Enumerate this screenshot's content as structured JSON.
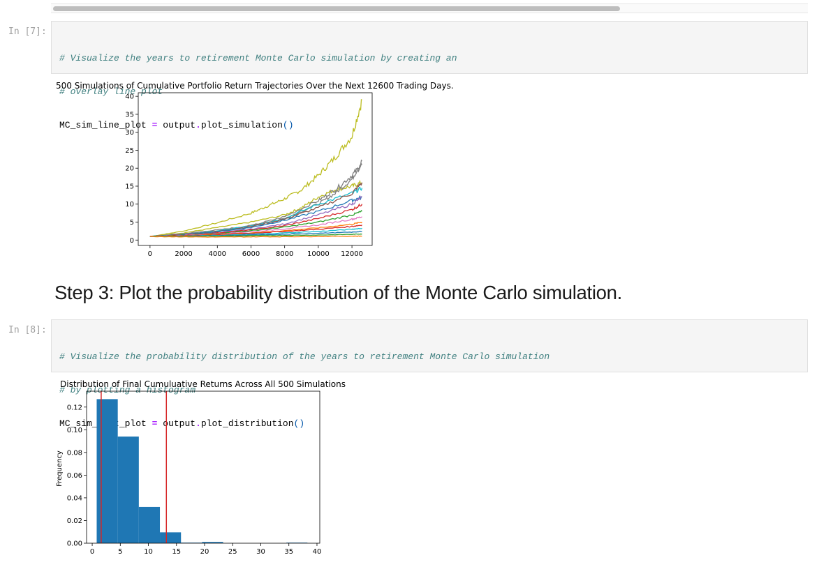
{
  "cells": [
    {
      "prompt": "In [7]:",
      "comment_lines": [
        "# Visualize the years to retirement Monte Carlo simulation by creating an",
        "# overlay line plot"
      ],
      "code": {
        "var": "MC_sim_line_plot",
        "op": "=",
        "obj": "output",
        "dot": ".",
        "method": "plot_simulation",
        "parens": "()"
      }
    },
    {
      "prompt": "In [8]:",
      "comment_lines": [
        "# Visualize the probability distribution of the years to retirement Monte Carlo simulation",
        "# by plotting a histogram"
      ],
      "code": {
        "var": "MC_sim_dist_plot",
        "op": "=",
        "obj": "output",
        "dot": ".",
        "method": "plot_distribution",
        "parens": "()"
      }
    }
  ],
  "markdown": {
    "heading": "Step 3: Plot the probability distribution of the Monte Carlo simulation."
  },
  "chart_data": [
    {
      "type": "line",
      "title": "500 Simulations of Cumulative Portfolio Return Trajectories Over the Next 12600 Trading Days.",
      "xlabel": "",
      "ylabel": "",
      "xlim": [
        -700,
        13200
      ],
      "ylim": [
        -1.5,
        41
      ],
      "x_ticks": [
        0,
        2000,
        4000,
        6000,
        8000,
        10000,
        12000
      ],
      "y_ticks": [
        0,
        5,
        10,
        15,
        20,
        25,
        30,
        35,
        40
      ],
      "num_simulations": 500,
      "x_end": 12600,
      "grid": false,
      "colors": [
        "#1f77b4",
        "#ff7f0e",
        "#2ca02c",
        "#d62728",
        "#9467bd",
        "#8c564b",
        "#e377c2",
        "#7f7f7f",
        "#bcbd22",
        "#17becf"
      ],
      "series": [
        {
          "color": "#bcbd22",
          "x": [
            0,
            2000,
            4000,
            6000,
            7000,
            8000,
            9000,
            10000,
            11000,
            12000,
            12600
          ],
          "values": [
            1,
            2.5,
            4.8,
            7.5,
            9.5,
            11.5,
            14,
            18,
            23,
            29,
            39
          ]
        },
        {
          "color": "#bcbd22",
          "x": [
            0,
            2000,
            4000,
            6000,
            8000,
            9000,
            10000,
            11000,
            12000,
            12600
          ],
          "values": [
            1,
            2,
            3.5,
            5,
            7,
            9,
            12,
            14,
            15,
            16
          ]
        },
        {
          "color": "#7f7f7f",
          "x": [
            0,
            2000,
            4000,
            6000,
            8000,
            10000,
            11000,
            12000,
            12600
          ],
          "values": [
            1,
            1.8,
            2.8,
            4,
            6,
            10,
            13,
            17,
            22
          ]
        },
        {
          "color": "#7f7f7f",
          "x": [
            0,
            2000,
            4000,
            6000,
            8000,
            10000,
            11000,
            12000,
            12600
          ],
          "values": [
            1,
            1.6,
            2.5,
            4,
            6.5,
            11,
            14,
            18,
            21
          ]
        },
        {
          "color": "#17becf",
          "x": [
            0,
            2000,
            4000,
            6000,
            8000,
            10000,
            12000,
            12600
          ],
          "values": [
            1,
            1.5,
            2.5,
            4,
            6,
            10,
            13,
            14.5
          ]
        },
        {
          "color": "#8c564b",
          "x": [
            0,
            2000,
            4000,
            6000,
            8000,
            10000,
            12000,
            12600
          ],
          "values": [
            1,
            1.5,
            2.4,
            3.8,
            5.8,
            9,
            13,
            16
          ]
        },
        {
          "color": "#1f77b4",
          "x": [
            0,
            2000,
            4000,
            6000,
            8000,
            10000,
            12000,
            12600
          ],
          "values": [
            1,
            1.5,
            2.3,
            3.5,
            5.5,
            8,
            11,
            12
          ]
        },
        {
          "color": "#9467bd",
          "x": [
            0,
            2000,
            4000,
            6000,
            8000,
            10000,
            12000,
            12600
          ],
          "values": [
            1,
            1.4,
            2,
            3,
            4.5,
            7,
            10,
            12
          ]
        },
        {
          "color": "#d62728",
          "x": [
            0,
            2000,
            4000,
            6000,
            8000,
            10000,
            12000,
            12600
          ],
          "values": [
            1,
            1.4,
            2,
            2.8,
            4,
            6,
            8.5,
            10
          ]
        },
        {
          "color": "#2ca02c",
          "x": [
            0,
            2000,
            4000,
            6000,
            8000,
            10000,
            12000,
            12600
          ],
          "values": [
            1,
            1.3,
            1.8,
            2.6,
            3.6,
            5,
            7,
            8
          ]
        },
        {
          "color": "#e377c2",
          "x": [
            0,
            2000,
            4000,
            6000,
            8000,
            10000,
            12000,
            12600
          ],
          "values": [
            1,
            1.3,
            1.7,
            2.3,
            3.1,
            4.2,
            5.8,
            6.5
          ]
        },
        {
          "color": "#ff7f0e",
          "x": [
            0,
            2000,
            4000,
            6000,
            8000,
            10000,
            12000,
            12600
          ],
          "values": [
            1,
            1.2,
            1.6,
            2,
            2.6,
            3.4,
            4.4,
            5
          ]
        },
        {
          "color": "#d62728",
          "x": [
            0,
            2000,
            4000,
            6000,
            8000,
            10000,
            12000,
            12600
          ],
          "values": [
            1,
            1.2,
            1.5,
            1.9,
            2.4,
            3,
            3.8,
            4.2
          ]
        },
        {
          "color": "#17becf",
          "x": [
            0,
            2000,
            4000,
            6000,
            8000,
            10000,
            12000,
            12600
          ],
          "values": [
            1,
            1.1,
            1.3,
            1.6,
            2,
            2.4,
            3,
            3.3
          ]
        },
        {
          "color": "#1f77b4",
          "x": [
            0,
            2000,
            4000,
            6000,
            8000,
            10000,
            12000,
            12600
          ],
          "values": [
            1,
            1.1,
            1.2,
            1.4,
            1.6,
            1.9,
            2.2,
            2.4
          ]
        },
        {
          "color": "#2ca02c",
          "x": [
            0,
            2000,
            4000,
            6000,
            8000,
            10000,
            12000,
            12600
          ],
          "values": [
            1,
            1.05,
            1.1,
            1.2,
            1.3,
            1.4,
            1.6,
            1.7
          ]
        },
        {
          "color": "#ff7f0e",
          "x": [
            0,
            2000,
            4000,
            6000,
            8000,
            10000,
            12000,
            12600
          ],
          "values": [
            1,
            0.9,
            0.85,
            0.9,
            0.95,
            1,
            1.1,
            1.1
          ]
        }
      ]
    },
    {
      "type": "bar",
      "title": "Distribution of Final Cumuluative Returns Across All 500 Simulations",
      "xlabel": "",
      "ylabel": "Frequency",
      "xlim": [
        -1,
        40.5
      ],
      "ylim": [
        0,
        0.134
      ],
      "x_ticks": [
        0,
        5,
        10,
        15,
        20,
        25,
        30,
        35,
        40
      ],
      "y_ticks": [
        0.0,
        0.02,
        0.04,
        0.06,
        0.08,
        0.1,
        0.12
      ],
      "y_tick_labels": [
        "0.00",
        "0.02",
        "0.04",
        "0.06",
        "0.08",
        "0.10",
        "0.12"
      ],
      "bin_edges": [
        0.8,
        4.55,
        8.3,
        12.05,
        15.8,
        19.55,
        23.3,
        27.05,
        30.8,
        34.55,
        38.3
      ],
      "values": [
        0.127,
        0.094,
        0.032,
        0.0096,
        0.0005,
        0.0011,
        0.0,
        0.0,
        0.0,
        0.0005
      ],
      "bar_color": "#1f77b4",
      "vlines": [
        1.6,
        13.2
      ],
      "vline_color": "#d62728",
      "grid": false
    }
  ]
}
